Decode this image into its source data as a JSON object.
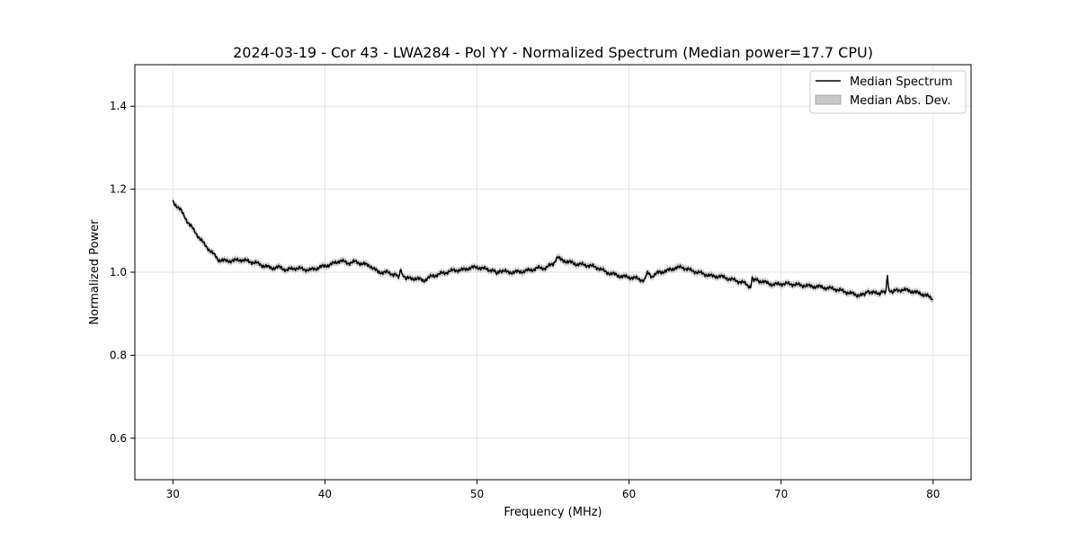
{
  "chart_data": {
    "type": "line",
    "title": "2024-03-19 - Cor 43 - LWA284 - Pol YY - Normalized Spectrum (Median power=17.7 CPU)",
    "xlabel": "Frequency (MHz)",
    "ylabel": "Normalized Power",
    "xlim": [
      27.5,
      82.5
    ],
    "ylim": [
      0.5,
      1.5
    ],
    "xticks": [
      30,
      40,
      50,
      60,
      70,
      80
    ],
    "yticks": [
      0.6,
      0.8,
      1.0,
      1.2,
      1.4
    ],
    "xtick_labels": [
      "30",
      "40",
      "50",
      "60",
      "70",
      "80"
    ],
    "ytick_labels": [
      "0.6",
      "0.8",
      "1.0",
      "1.2",
      "1.4"
    ],
    "grid": true,
    "legend_position": "top-right",
    "legend": [
      {
        "label": "Median Spectrum",
        "kind": "line",
        "color": "#000000"
      },
      {
        "label": "Median Abs. Dev.",
        "kind": "band",
        "color": "#c8c8c8"
      }
    ],
    "series": [
      {
        "name": "Median Spectrum",
        "color": "#000000",
        "band_color": "#bdbdbd",
        "band_halfwidth": 0.008,
        "x": [
          30.0,
          30.5,
          31.0,
          31.5,
          32.0,
          32.5,
          33.0,
          33.5,
          34.0,
          34.5,
          35.0,
          35.5,
          36.0,
          36.5,
          37.0,
          37.5,
          38.0,
          38.5,
          39.0,
          39.5,
          40.0,
          40.5,
          41.0,
          41.5,
          42.0,
          42.5,
          43.0,
          43.5,
          44.0,
          44.5,
          44.9,
          45.0,
          45.1,
          45.5,
          46.0,
          46.5,
          47.0,
          47.5,
          48.0,
          48.5,
          49.0,
          49.5,
          50.0,
          50.5,
          51.0,
          51.3,
          51.5,
          52.0,
          52.5,
          53.0,
          53.5,
          54.0,
          54.5,
          55.0,
          55.3,
          55.5,
          56.0,
          56.5,
          57.0,
          57.5,
          58.0,
          58.5,
          59.0,
          59.5,
          60.0,
          60.5,
          61.0,
          61.2,
          61.5,
          62.0,
          62.5,
          63.0,
          63.5,
          64.0,
          64.5,
          65.0,
          65.5,
          66.0,
          66.5,
          67.0,
          67.5,
          68.0,
          68.1,
          68.5,
          69.0,
          69.5,
          70.0,
          70.5,
          71.0,
          71.5,
          72.0,
          72.5,
          73.0,
          73.5,
          74.0,
          74.5,
          75.0,
          75.5,
          75.7,
          76.0,
          76.5,
          76.9,
          77.0,
          77.1,
          77.5,
          78.0,
          78.5,
          79.0,
          79.5,
          80.0
        ],
        "values": [
          1.17,
          1.15,
          1.12,
          1.095,
          1.07,
          1.05,
          1.03,
          1.027,
          1.028,
          1.03,
          1.026,
          1.022,
          1.015,
          1.01,
          1.012,
          1.005,
          1.01,
          1.008,
          1.005,
          1.01,
          1.015,
          1.02,
          1.028,
          1.022,
          1.025,
          1.02,
          1.015,
          1.0,
          1.0,
          0.995,
          0.99,
          1.01,
          0.99,
          0.985,
          0.985,
          0.98,
          0.99,
          0.995,
          1.0,
          1.005,
          1.005,
          1.01,
          1.012,
          1.008,
          1.005,
          0.998,
          1.005,
          1.0,
          1.0,
          1.002,
          1.005,
          1.01,
          1.01,
          1.02,
          1.035,
          1.03,
          1.025,
          1.02,
          1.018,
          1.015,
          1.01,
          1.0,
          0.995,
          0.99,
          0.988,
          0.985,
          0.98,
          0.998,
          0.99,
          1.0,
          1.003,
          1.01,
          1.012,
          1.005,
          1.0,
          0.995,
          0.99,
          0.99,
          0.985,
          0.98,
          0.975,
          0.965,
          0.985,
          0.98,
          0.975,
          0.97,
          0.972,
          0.972,
          0.97,
          0.968,
          0.966,
          0.965,
          0.962,
          0.96,
          0.955,
          0.95,
          0.945,
          0.945,
          0.955,
          0.95,
          0.95,
          0.955,
          0.995,
          0.952,
          0.955,
          0.958,
          0.955,
          0.95,
          0.945,
          0.935
        ]
      }
    ]
  }
}
